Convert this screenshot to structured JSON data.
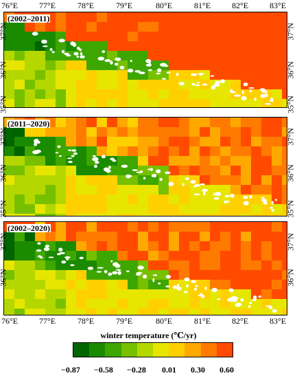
{
  "top_lon_labels": [
    "76°E",
    "77°E",
    "78°E",
    "79°E",
    "80°E",
    "81°E",
    "82°E",
    "83°E"
  ],
  "bottom_lon_labels": [
    "76°E",
    "77°E",
    "78°E",
    "79°E",
    "80°E",
    "81°E",
    "82°E",
    "83°E"
  ],
  "panels": [
    {
      "period": "(2002–2011)",
      "left_lat": [
        "37°N",
        "36°N",
        "35°N"
      ],
      "right_lat": [
        "37°N",
        "36°N",
        "35°N"
      ],
      "seed": 3,
      "trend": 0.55
    },
    {
      "period": "(2011–2020)",
      "left_lat": [
        "37°N",
        "36°N",
        "35°N"
      ],
      "right_lat": [
        "37°N",
        "36°N",
        "35°N"
      ],
      "seed": 7,
      "trend": 0.35
    },
    {
      "period": "(2002–2020)",
      "left_lat": [
        "37°N",
        "36°N"
      ],
      "right_lat": [
        "37°N",
        "36°N"
      ],
      "seed": 11,
      "trend": 0.42
    }
  ],
  "colorbar": {
    "title": "winter temperature (℃/yr)",
    "ticks": [
      "−0.87",
      "−0.58",
      "−0.28",
      "0.01",
      "0.30",
      "0.60"
    ],
    "colors": [
      "#006400",
      "#1a8a00",
      "#3da600",
      "#76c000",
      "#b5d700",
      "#e6e600",
      "#ffd000",
      "#ffa800",
      "#ff7a00",
      "#ff4a00"
    ]
  },
  "icons": {
    "glacier": "white-glacier-patches"
  }
}
